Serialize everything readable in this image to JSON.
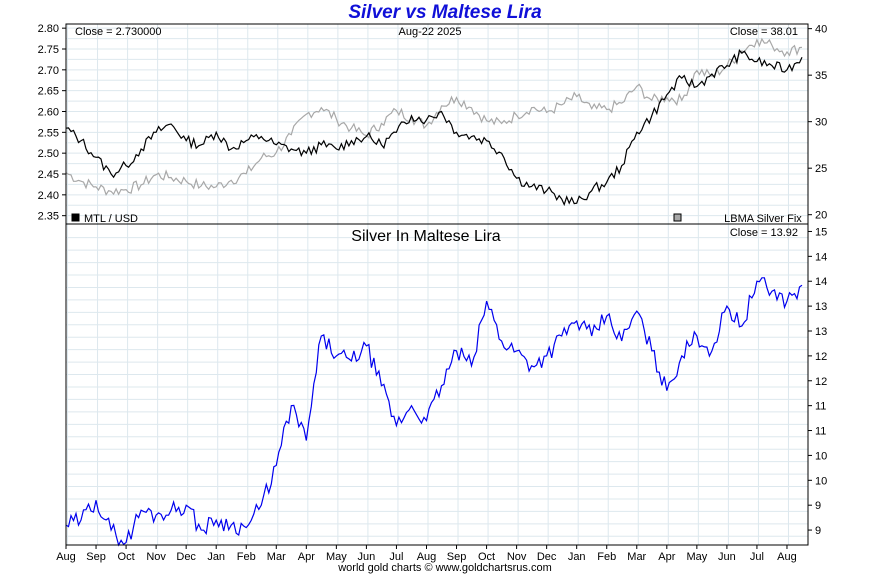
{
  "title": "Silver vs Maltese Lira",
  "credit": "world gold charts © www.goldchartsrus.com",
  "chart_data": [
    {
      "type": "line",
      "panel": "top",
      "annotations": {
        "close_left": "Close = 2.730000",
        "date": "Aug-22  2025",
        "close_right": "Close = 38.01"
      },
      "legend": [
        {
          "label": "MTL / USD",
          "color": "#000000",
          "placement": "bottom-left"
        },
        {
          "label": "LBMA Silver Fix",
          "color": "#a8a8a8",
          "placement": "bottom-right"
        }
      ],
      "y_left": {
        "ticks": [
          "2.35",
          "2.40",
          "2.45",
          "2.50",
          "2.55",
          "2.60",
          "2.65",
          "2.70",
          "2.75",
          "2.80"
        ],
        "ylim": [
          2.33,
          2.81
        ]
      },
      "y_right": {
        "ticks": [
          "20",
          "25",
          "30",
          "35",
          "40"
        ],
        "ylim": [
          19,
          40.5
        ]
      },
      "grid": true,
      "series": [
        {
          "name": "MTL / USD",
          "axis": "left",
          "color": "#000000",
          "x": [
            0,
            0.5,
            1,
            1.5,
            2,
            2.5,
            3,
            3.5,
            4,
            4.5,
            5,
            5.5,
            6,
            6.5,
            7,
            7.5,
            8,
            8.5,
            9,
            9.5,
            10,
            10.5,
            11,
            11.5,
            12,
            12.5,
            13,
            13.5,
            14,
            14.5,
            15,
            15.5,
            16,
            16.5,
            17,
            17.5,
            18,
            18.5,
            19,
            19.5,
            20,
            20.5,
            21,
            21.5,
            22,
            22.5,
            23,
            23.5,
            24,
            24.5
          ],
          "values": [
            2.56,
            2.53,
            2.49,
            2.45,
            2.47,
            2.51,
            2.55,
            2.57,
            2.53,
            2.52,
            2.55,
            2.51,
            2.53,
            2.54,
            2.52,
            2.51,
            2.5,
            2.52,
            2.51,
            2.53,
            2.54,
            2.52,
            2.55,
            2.59,
            2.58,
            2.6,
            2.55,
            2.54,
            2.53,
            2.5,
            2.44,
            2.42,
            2.41,
            2.39,
            2.38,
            2.41,
            2.43,
            2.47,
            2.55,
            2.59,
            2.64,
            2.68,
            2.66,
            2.69,
            2.71,
            2.74,
            2.72,
            2.71,
            2.7,
            2.73
          ]
        },
        {
          "name": "LBMA Silver Fix",
          "axis": "right",
          "color": "#a8a8a8",
          "x": [
            0,
            0.5,
            1,
            1.5,
            2,
            2.5,
            3,
            3.5,
            4,
            4.5,
            5,
            5.5,
            6,
            6.5,
            7,
            7.5,
            8,
            8.5,
            9,
            9.5,
            10,
            10.5,
            11,
            11.5,
            12,
            12.5,
            13,
            13.5,
            14,
            14.5,
            15,
            15.5,
            16,
            16.5,
            17,
            17.5,
            18,
            18.5,
            19,
            19.5,
            20,
            20.5,
            21,
            21.5,
            22,
            22.5,
            23,
            23.5,
            24,
            24.5
          ],
          "values": [
            24.5,
            23.6,
            23.0,
            22.5,
            22.7,
            23.2,
            24.3,
            24.0,
            23.6,
            23.1,
            23.0,
            23.7,
            24.4,
            26.1,
            26.7,
            28.6,
            30.8,
            31.5,
            30.3,
            29.3,
            28.5,
            29.8,
            31.2,
            30.4,
            29.6,
            31.7,
            32.6,
            31.5,
            30.1,
            29.8,
            30.7,
            31.5,
            31.0,
            31.8,
            32.7,
            31.4,
            31.3,
            32.0,
            33.8,
            32.3,
            32.6,
            32.3,
            35.5,
            34.9,
            36.0,
            37.6,
            38.8,
            38.2,
            37.5,
            38.0
          ]
        }
      ]
    },
    {
      "type": "line",
      "panel": "bottom",
      "title": "Silver In Maltese Lira",
      "annotations": {
        "close_right": "Close = 13.92"
      },
      "y_right": {
        "ticks": [
          "9",
          "9",
          "10",
          "10",
          "11",
          "11",
          "12",
          "12",
          "13",
          "13",
          "14",
          "14",
          "15"
        ],
        "ylim": [
          8.7,
          15.15
        ]
      },
      "grid": true,
      "x_ticks": [
        "Aug",
        "Sep",
        "Oct",
        "Nov",
        "Dec",
        "Jan",
        "Feb",
        "Mar",
        "Apr",
        "May",
        "Jun",
        "Jul",
        "Aug",
        "Sep",
        "Oct",
        "Nov",
        "Dec",
        "Jan",
        "Feb",
        "Mar",
        "Apr",
        "May",
        "Jun",
        "Jul",
        "Aug"
      ],
      "series": [
        {
          "name": "",
          "color": "#0000ee",
          "x": [
            0,
            0.5,
            1,
            1.5,
            2,
            2.5,
            3,
            3.5,
            4,
            4.5,
            5,
            5.5,
            6,
            6.5,
            7,
            7.5,
            8,
            8.5,
            9,
            9.5,
            10,
            10.5,
            11,
            11.5,
            12,
            12.5,
            13,
            13.5,
            14,
            14.5,
            15,
            15.5,
            16,
            16.5,
            17,
            17.5,
            18,
            18.5,
            19,
            19.5,
            20,
            20.5,
            21,
            21.5,
            22,
            22.5,
            23,
            23.5,
            24,
            24.5
          ],
          "values": [
            9.1,
            9.2,
            9.6,
            9.0,
            8.75,
            9.4,
            9.3,
            9.4,
            9.5,
            9.0,
            9.2,
            9.1,
            9.05,
            9.5,
            10.3,
            11.5,
            10.8,
            12.9,
            12.5,
            12.4,
            12.7,
            11.9,
            11.1,
            11.5,
            11.2,
            11.9,
            12.6,
            12.3,
            13.6,
            12.8,
            12.6,
            12.3,
            12.5,
            12.9,
            13.2,
            12.9,
            13.3,
            12.8,
            13.4,
            12.6,
            11.8,
            12.5,
            12.9,
            12.6,
            13.5,
            13.1,
            14.0,
            13.8,
            13.6,
            13.92
          ]
        }
      ]
    }
  ]
}
